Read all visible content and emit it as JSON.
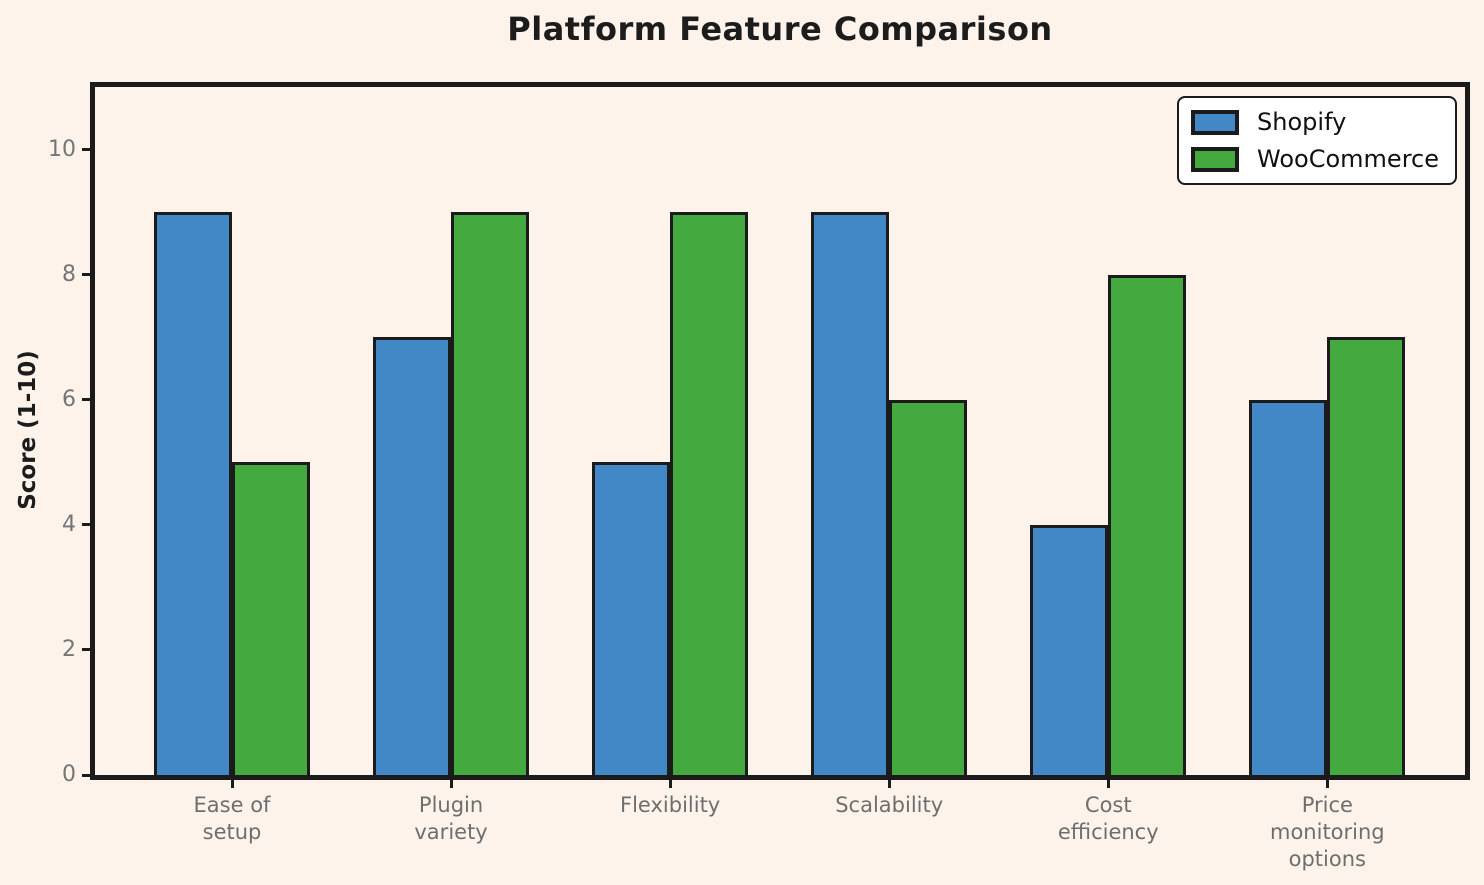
{
  "chart_data": {
    "type": "bar",
    "title": "Platform Feature Comparison",
    "xlabel": "",
    "ylabel": "Score (1-10)",
    "categories": [
      "Ease of\nsetup",
      "Plugin\nvariety",
      "Flexibility",
      "Scalability",
      "Cost\nefficiency",
      "Price\nmonitoring\noptions"
    ],
    "series": [
      {
        "name": "Shopify",
        "color": "#4288C6",
        "values": [
          9,
          7,
          5,
          9,
          4,
          6
        ]
      },
      {
        "name": "WooCommerce",
        "color": "#44A93E",
        "values": [
          5,
          9,
          9,
          6,
          8,
          7
        ]
      }
    ],
    "yticks": [
      0,
      2,
      4,
      6,
      8,
      10
    ],
    "ylim": [
      0,
      11
    ],
    "grid": false,
    "legend_position": "upper right",
    "colors": {
      "background": "#FDF3EB",
      "bar_edge": "#1B1B1B",
      "axis_spine": "#1B1B1B",
      "tick_label": "#757575",
      "title_text": "#1C1C1C",
      "legend_background": "#FFFFFF"
    }
  }
}
